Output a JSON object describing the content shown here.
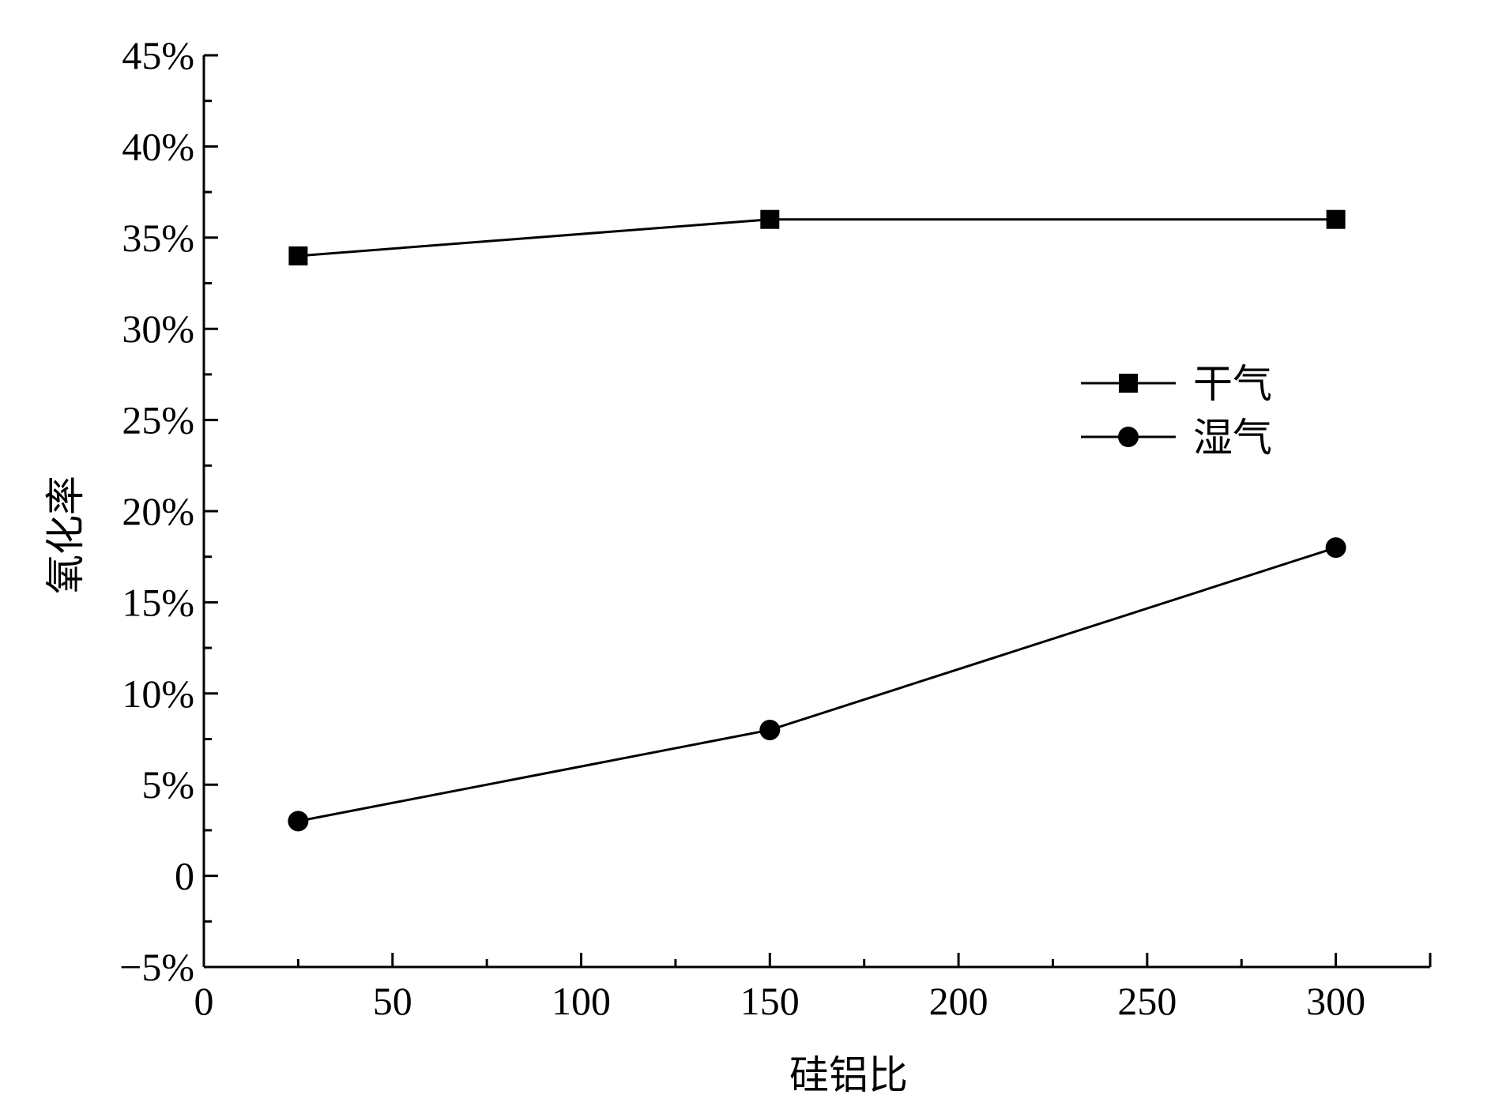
{
  "chart_data": {
    "type": "line",
    "xlabel": "硅铝比",
    "ylabel": "氧化率",
    "xlim": [
      0,
      325
    ],
    "ylim": [
      -5,
      45
    ],
    "x_ticks": [
      0,
      50,
      100,
      150,
      200,
      250,
      300
    ],
    "x_tick_labels": [
      "0",
      "50",
      "100",
      "150",
      "200",
      "250",
      "300"
    ],
    "y_ticks": [
      -5,
      0,
      5,
      10,
      15,
      20,
      25,
      30,
      35,
      40,
      45
    ],
    "y_tick_labels": [
      "−5%",
      "0",
      "5%",
      "10%",
      "15%",
      "20%",
      "25%",
      "30%",
      "35%",
      "40%",
      "45%"
    ],
    "legend_position": "right",
    "grid": false,
    "series": [
      {
        "name": "干气",
        "marker": "square",
        "color": "#000000",
        "x": [
          25,
          150,
          300
        ],
        "y": [
          34,
          36,
          36
        ]
      },
      {
        "name": "湿气",
        "marker": "circle",
        "color": "#000000",
        "x": [
          25,
          150,
          300
        ],
        "y": [
          3,
          8,
          18
        ]
      }
    ]
  }
}
